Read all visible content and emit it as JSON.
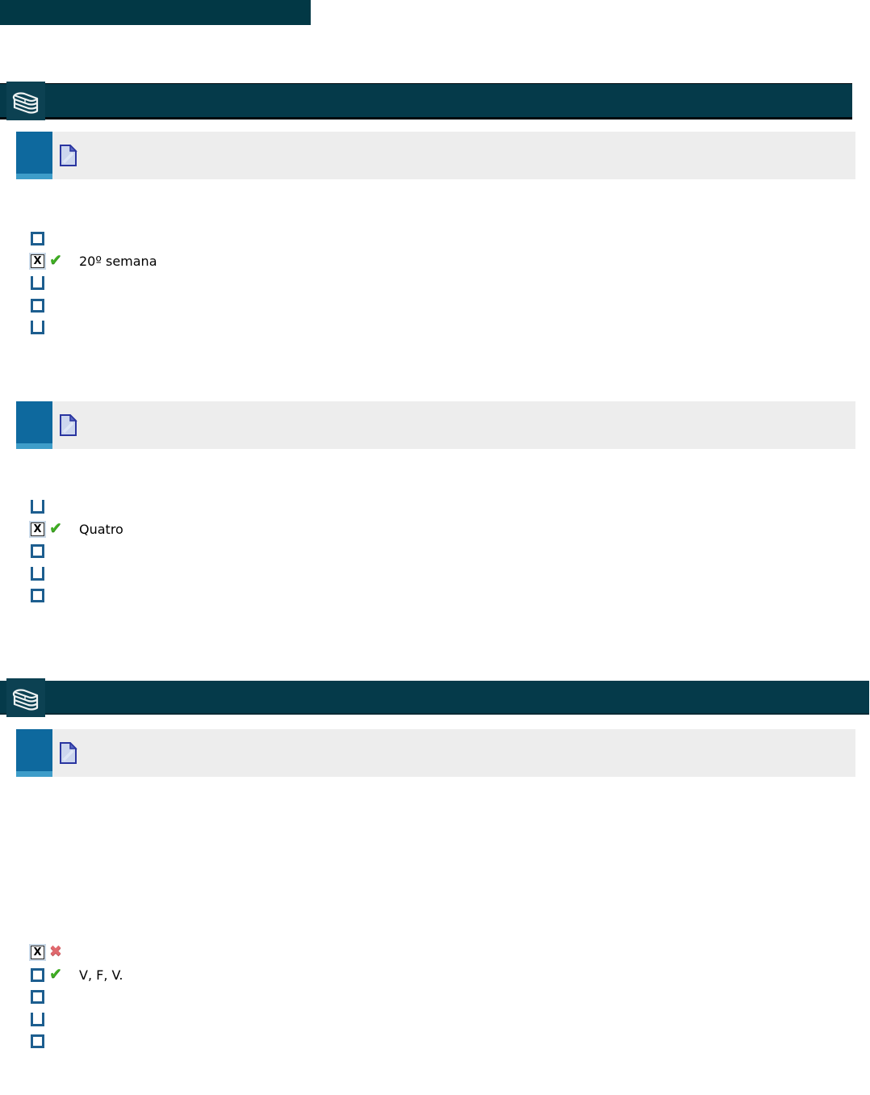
{
  "colors": {
    "top_bar": "#023845",
    "band": "#053a4a",
    "band_icon_bg": "#0c4152",
    "band_border": "#00090e",
    "badge": "#0e699e",
    "badge_light": "#3e9dc9",
    "header_gray": "#ededed",
    "cb_border": "#1d5e8f",
    "checked_border": "#2b2b2b",
    "checked_ring": "#c9d8e7",
    "green": "#3fae23",
    "red": "#e0696e",
    "doc_fill": "#ccd6ee",
    "doc_border": "#2a35a0",
    "doc_fold": "#5a68c4",
    "text": "#000000"
  },
  "icons": {
    "books": "books-stack-icon",
    "document": "document-page-icon",
    "checked_glyph": "X",
    "correct_mark": "✔",
    "incorrect_mark": "✖"
  },
  "questions": [
    {
      "options": [
        {
          "box": "empty",
          "mark": "",
          "label": ""
        },
        {
          "box": "checked",
          "mark": "correct",
          "label": "20º semana"
        },
        {
          "box": "empty-open",
          "mark": "",
          "label": ""
        },
        {
          "box": "empty",
          "mark": "",
          "label": ""
        },
        {
          "box": "empty-open",
          "mark": "",
          "label": ""
        }
      ]
    },
    {
      "options": [
        {
          "box": "empty-open",
          "mark": "",
          "label": ""
        },
        {
          "box": "checked",
          "mark": "correct",
          "label": "Quatro"
        },
        {
          "box": "empty",
          "mark": "",
          "label": ""
        },
        {
          "box": "empty-open",
          "mark": "",
          "label": ""
        },
        {
          "box": "empty",
          "mark": "",
          "label": ""
        }
      ]
    },
    {
      "options": [
        {
          "box": "checked",
          "mark": "incorrect",
          "label": ""
        },
        {
          "box": "empty",
          "mark": "correct",
          "label": "V, F, V."
        },
        {
          "box": "empty",
          "mark": "",
          "label": ""
        },
        {
          "box": "empty-open",
          "mark": "",
          "label": ""
        },
        {
          "box": "empty",
          "mark": "",
          "label": ""
        }
      ]
    }
  ]
}
